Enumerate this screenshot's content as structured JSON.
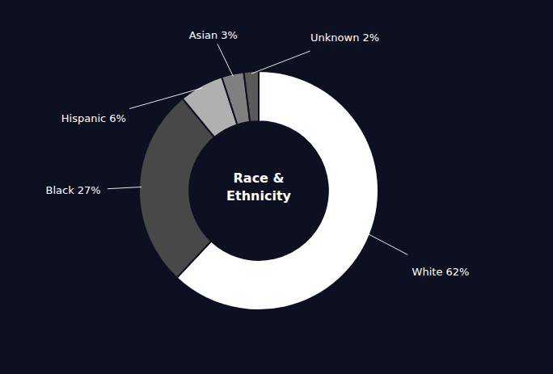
{
  "chart_data": {
    "type": "donut",
    "title": "Race &\nEthnicity",
    "categories": [
      "White",
      "Black",
      "Hispanic",
      "Asian",
      "Unknown"
    ],
    "values": [
      62,
      27,
      6,
      3,
      2
    ],
    "value_labels": [
      "62%",
      "27%",
      "6%",
      "3%",
      "2%"
    ],
    "colors": [
      "#ffffff",
      "#484848",
      "#b0b0b0",
      "#808080",
      "#5a5a5a"
    ]
  }
}
